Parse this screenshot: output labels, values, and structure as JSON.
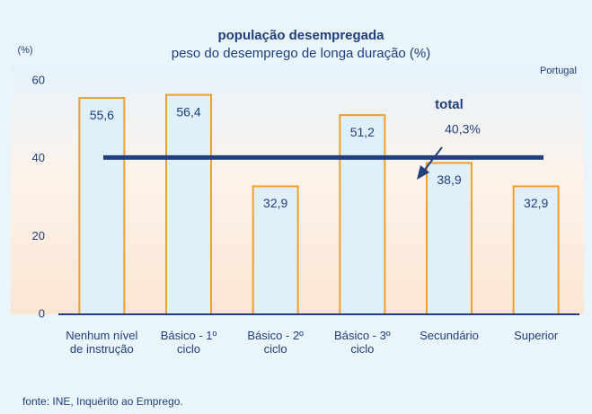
{
  "chart_data": {
    "type": "bar",
    "title": "população desempregada",
    "subtitle": "peso do desemprego de longa duração (%)",
    "y_label": "(%)",
    "annotation": "Portugal",
    "source": "fonte: INE, Inquérito ao Emprego.",
    "categories": [
      "Nenhum nível de instrução",
      "Básico - 1º ciclo",
      "Básico - 2º ciclo",
      "Básico - 3º ciclo",
      "Secundário",
      "Superior"
    ],
    "values": [
      55.6,
      56.4,
      32.9,
      51.2,
      38.9,
      32.9
    ],
    "value_labels": [
      "55,6",
      "56,4",
      "32,9",
      "51,2",
      "38,9",
      "32,9"
    ],
    "color": "#dff0fb",
    "edge_color": "#f0a028",
    "reference_line": {
      "name": "total",
      "value": 40.3,
      "value_label": "40,3%",
      "color": "#203f7c"
    },
    "ylim": [
      0,
      60
    ],
    "yticks": [
      0,
      20,
      40,
      60
    ],
    "grid": false
  }
}
